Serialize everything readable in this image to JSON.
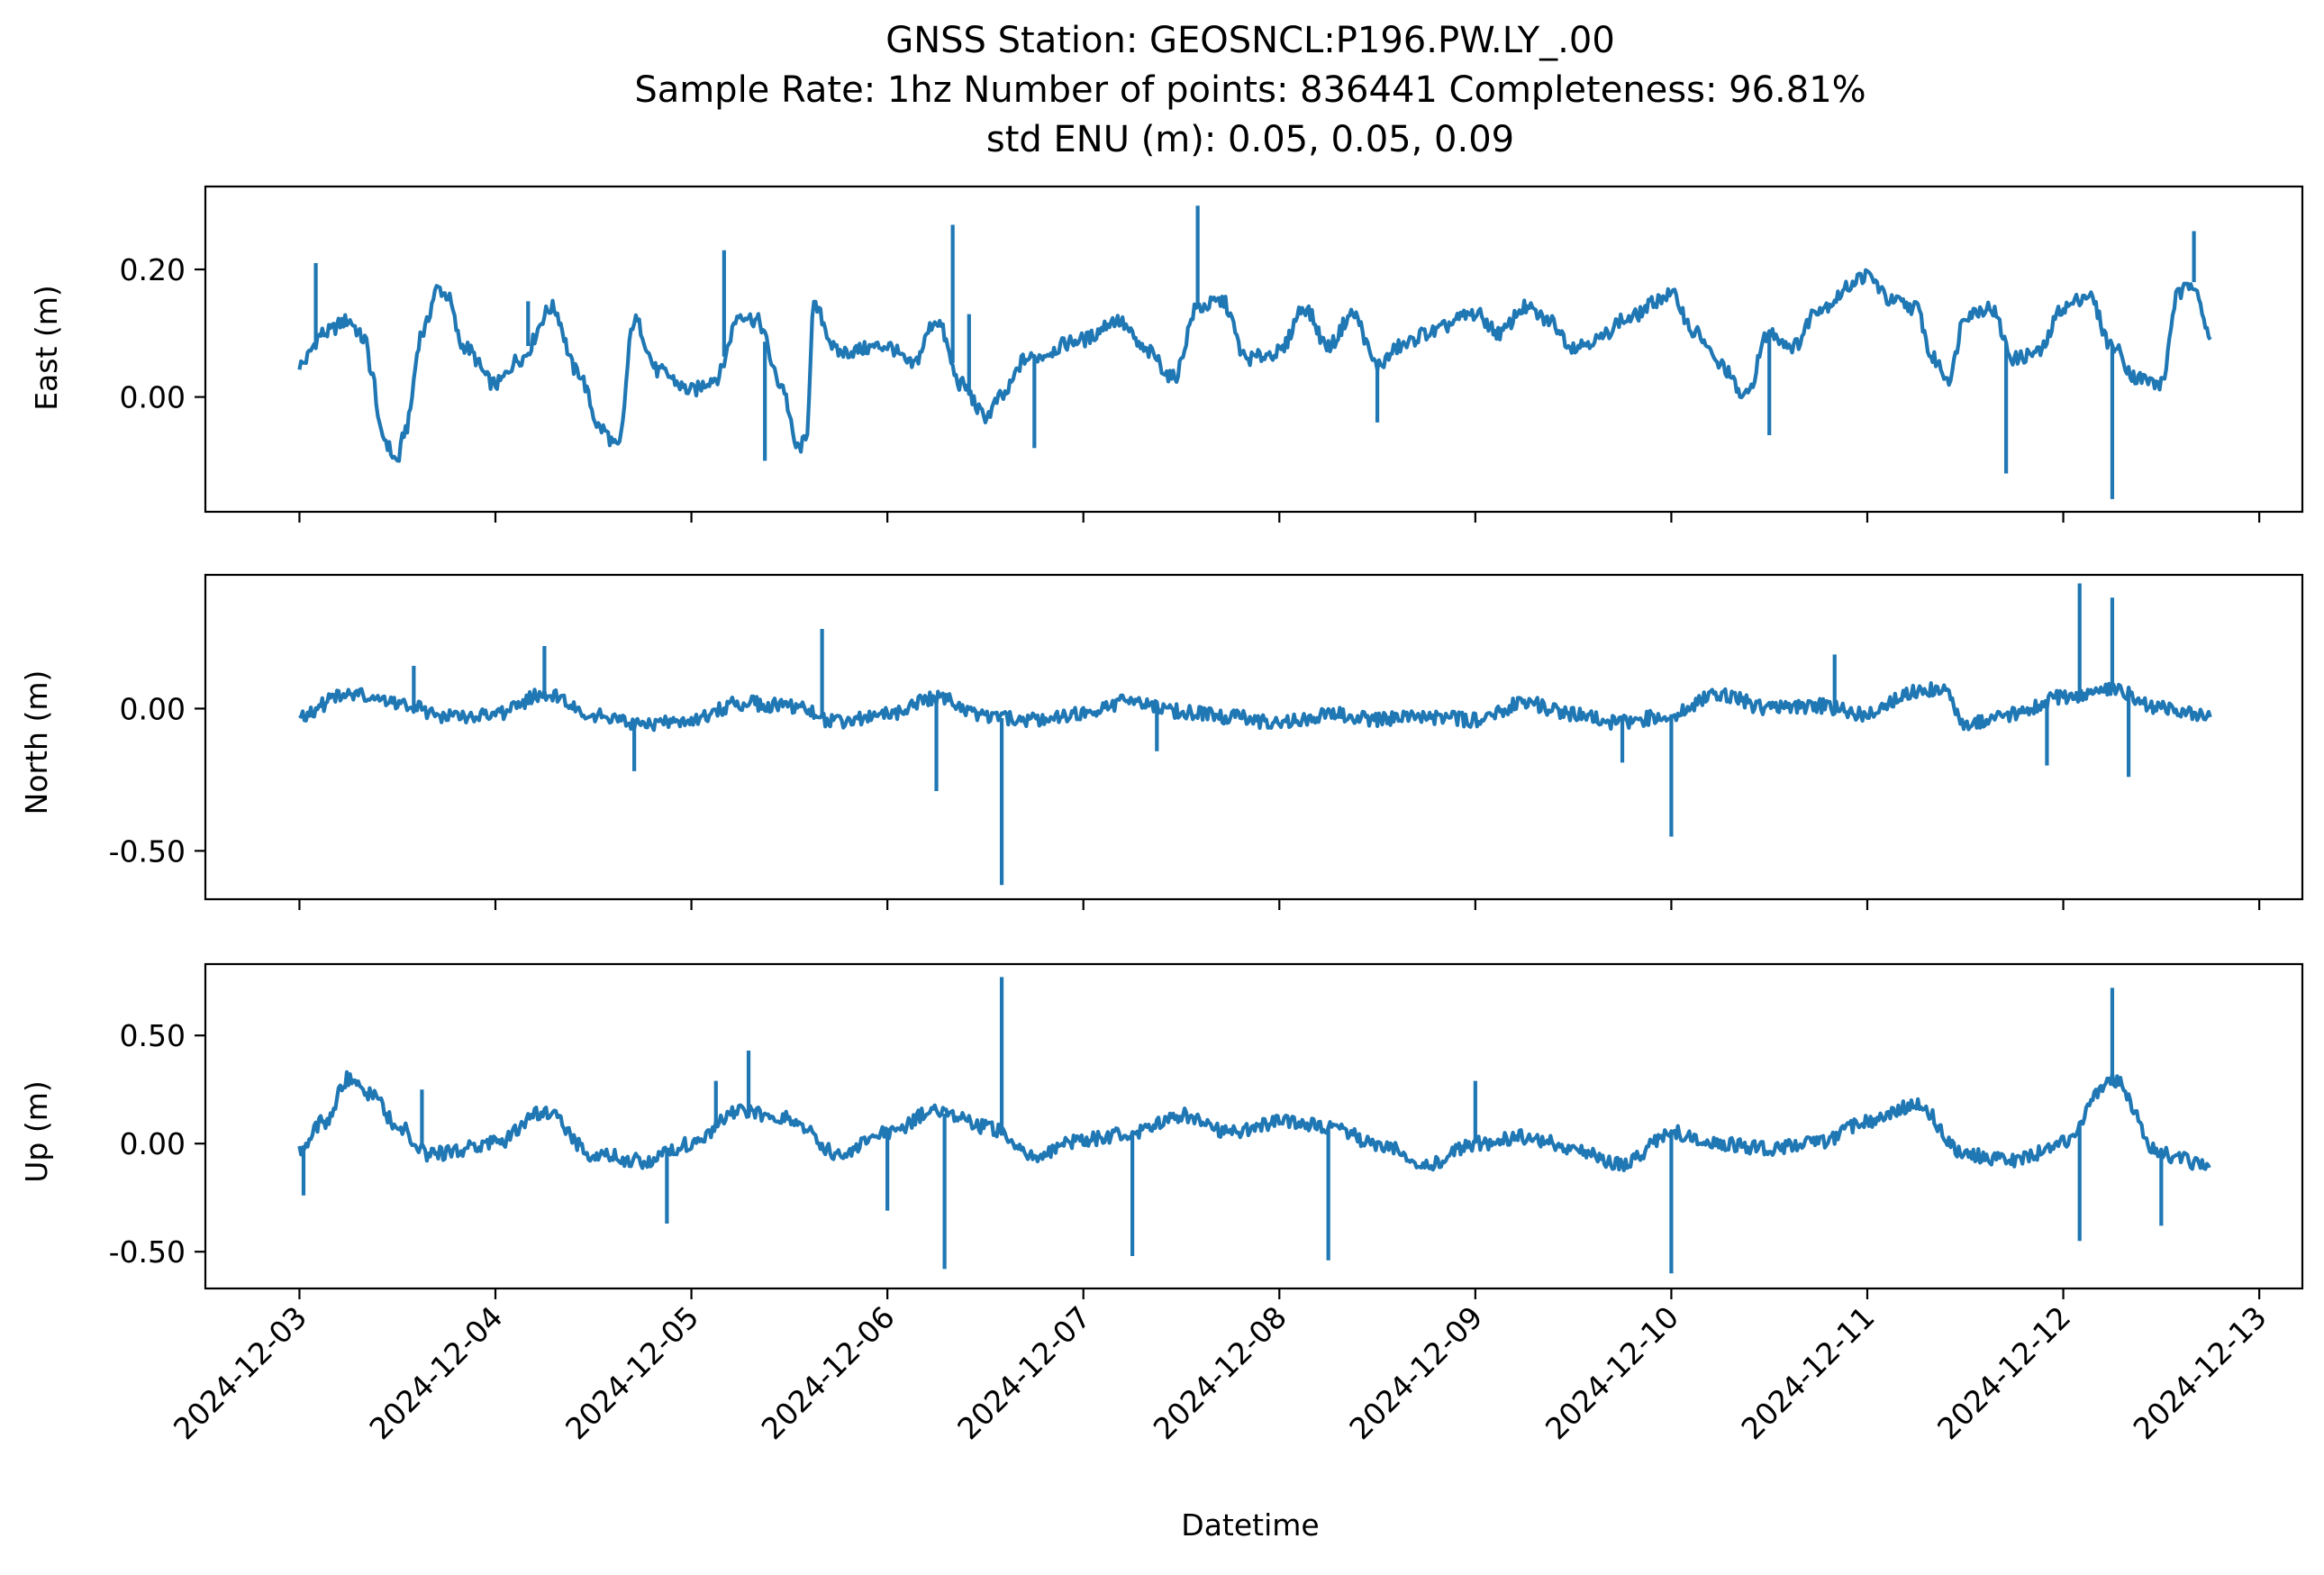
{
  "figure": {
    "title_lines": [
      "GNSS Station: GEOSNCL:P196.PW.LY_.00",
      "Sample Rate: 1hz   Number of points: 836441    Completeness:  96.81%",
      "std ENU (m):  0.05, 0.05, 0.09"
    ],
    "xlabel": "Datetime",
    "line_color": "#1f77b4"
  },
  "chart_data": [
    {
      "type": "line",
      "panel": "east",
      "ylabel": "East (m)",
      "ylim": [
        -0.18,
        0.33
      ],
      "yticks": [
        0.0,
        0.2
      ],
      "ytick_labels": [
        "0.00",
        "0.20"
      ],
      "x_range": [
        "2024-12-03",
        "2024-12-12T18:00"
      ],
      "xlim": [
        -0.48,
        10.22
      ],
      "xticks": [
        "2024-12-03",
        "2024-12-04",
        "2024-12-05",
        "2024-12-06",
        "2024-12-07",
        "2024-12-08",
        "2024-12-09",
        "2024-12-10",
        "2024-12-11",
        "2024-12-12",
        "2024-12-13"
      ],
      "xtick_labels": [],
      "series": [
        {
          "color": "#1f77b4",
          "points": [
            [
              "2024-12-03T00:00",
              0.05
            ],
            [
              "2024-12-03T03:00",
              0.1
            ],
            [
              "2024-12-03T06:00",
              0.12
            ],
            [
              "2024-12-03T08:00",
              0.09
            ],
            [
              "2024-12-03T09:00",
              0.03
            ],
            [
              "2024-12-03T10:00",
              -0.06
            ],
            [
              "2024-12-03T12:00",
              -0.1
            ],
            [
              "2024-12-03T13:00",
              -0.05
            ],
            [
              "2024-12-03T15:00",
              0.1
            ],
            [
              "2024-12-03T17:00",
              0.17
            ],
            [
              "2024-12-03T18:00",
              0.16
            ],
            [
              "2024-12-03T20:00",
              0.08
            ],
            [
              "2024-12-04T00:00",
              0.02
            ],
            [
              "2024-12-04T03:00",
              0.06
            ],
            [
              "2024-12-04T07:00",
              0.14
            ],
            [
              "2024-12-04T10:00",
              0.04
            ],
            [
              "2024-12-04T13:00",
              -0.05
            ],
            [
              "2024-12-04T15:00",
              -0.08
            ],
            [
              "2024-12-04T17:00",
              0.12
            ],
            [
              "2024-12-04T20:00",
              0.04
            ],
            [
              "2024-12-05T00:00",
              0.01
            ],
            [
              "2024-12-05T03:00",
              0.03
            ],
            [
              "2024-12-05T06:00",
              0.13
            ],
            [
              "2024-12-05T08:00",
              0.12
            ],
            [
              "2024-12-05T11:00",
              0.02
            ],
            [
              "2024-12-05T13:00",
              -0.08
            ],
            [
              "2024-12-05T14:00",
              -0.07
            ],
            [
              "2024-12-05T15:00",
              0.14
            ],
            [
              "2024-12-05T18:00",
              0.07
            ],
            [
              "2024-12-06T00:00",
              0.08
            ],
            [
              "2024-12-06T03:00",
              0.05
            ],
            [
              "2024-12-06T06:00",
              0.12
            ],
            [
              "2024-12-06T09:00",
              0.02
            ],
            [
              "2024-12-06T12:00",
              -0.03
            ],
            [
              "2024-12-06T14:00",
              0.0
            ],
            [
              "2024-12-06T17:00",
              0.06
            ],
            [
              "2024-12-07T00:00",
              0.09
            ],
            [
              "2024-12-07T04:00",
              0.12
            ],
            [
              "2024-12-07T08:00",
              0.07
            ],
            [
              "2024-12-07T11:00",
              0.03
            ],
            [
              "2024-12-07T14:00",
              0.14
            ],
            [
              "2024-12-07T17:00",
              0.15
            ],
            [
              "2024-12-07T20:00",
              0.06
            ],
            [
              "2024-12-08T00:00",
              0.07
            ],
            [
              "2024-12-08T03:00",
              0.14
            ],
            [
              "2024-12-08T06:00",
              0.08
            ],
            [
              "2024-12-08T09:00",
              0.13
            ],
            [
              "2024-12-08T12:00",
              0.05
            ],
            [
              "2024-12-08T15:00",
              0.08
            ],
            [
              "2024-12-08T18:00",
              0.1
            ],
            [
              "2024-12-09T00:00",
              0.13
            ],
            [
              "2024-12-09T03:00",
              0.1
            ],
            [
              "2024-12-09T06:00",
              0.14
            ],
            [
              "2024-12-09T09:00",
              0.12
            ],
            [
              "2024-12-09T12:00",
              0.08
            ],
            [
              "2024-12-09T15:00",
              0.09
            ],
            [
              "2024-12-09T18:00",
              0.12
            ],
            [
              "2024-12-10T00:00",
              0.16
            ],
            [
              "2024-12-10T03:00",
              0.1
            ],
            [
              "2024-12-10T06:00",
              0.05
            ],
            [
              "2024-12-10T09:00",
              0.0
            ],
            [
              "2024-12-10T12:00",
              0.1
            ],
            [
              "2024-12-10T15:00",
              0.08
            ],
            [
              "2024-12-10T18:00",
              0.14
            ],
            [
              "2024-12-11T00:00",
              0.19
            ],
            [
              "2024-12-11T03:00",
              0.15
            ],
            [
              "2024-12-11T06:00",
              0.14
            ],
            [
              "2024-12-11T08:00",
              0.06
            ],
            [
              "2024-12-11T10:00",
              0.03
            ],
            [
              "2024-12-11T12:00",
              0.13
            ],
            [
              "2024-12-11T15:00",
              0.14
            ],
            [
              "2024-12-11T18:00",
              0.06
            ],
            [
              "2024-12-11T21:00",
              0.07
            ],
            [
              "2024-12-12T00:00",
              0.14
            ],
            [
              "2024-12-12T03:00",
              0.16
            ],
            [
              "2024-12-12T06:00",
              0.08
            ],
            [
              "2024-12-12T09:00",
              0.03
            ],
            [
              "2024-12-12T12:00",
              0.02
            ],
            [
              "2024-12-12T14:00",
              0.16
            ],
            [
              "2024-12-12T16:00",
              0.18
            ],
            [
              "2024-12-12T18:00",
              0.09
            ]
          ],
          "spikes": [
            [
              "2024-12-03T02:00",
              0.21
            ],
            [
              "2024-12-04T04:00",
              0.15
            ],
            [
              "2024-12-05T04:00",
              0.23
            ],
            [
              "2024-12-05T09:00",
              -0.1
            ],
            [
              "2024-12-06T08:00",
              0.27
            ],
            [
              "2024-12-06T10:00",
              0.13
            ],
            [
              "2024-12-06T18:00",
              -0.08
            ],
            [
              "2024-12-07T14:00",
              0.3
            ],
            [
              "2024-12-08T12:00",
              -0.04
            ],
            [
              "2024-12-10T12:00",
              -0.06
            ],
            [
              "2024-12-11T17:00",
              -0.12
            ],
            [
              "2024-12-12T06:00",
              -0.16
            ],
            [
              "2024-12-12T16:00",
              0.26
            ]
          ]
        }
      ]
    },
    {
      "type": "line",
      "panel": "north",
      "ylabel": "North (m)",
      "ylim": [
        -0.67,
        0.47
      ],
      "yticks": [
        -0.5,
        0.0
      ],
      "ytick_labels": [
        "-0.50",
        "0.00"
      ],
      "x_range": [
        "2024-12-03",
        "2024-12-12T18:00"
      ],
      "xlim": [
        -0.48,
        10.22
      ],
      "xticks": [
        "2024-12-03",
        "2024-12-04",
        "2024-12-05",
        "2024-12-06",
        "2024-12-07",
        "2024-12-08",
        "2024-12-09",
        "2024-12-10",
        "2024-12-11",
        "2024-12-12",
        "2024-12-13"
      ],
      "xtick_labels": [],
      "series": [
        {
          "color": "#1f77b4",
          "points": [
            [
              "2024-12-03T00:00",
              -0.02
            ],
            [
              "2024-12-03T06:00",
              0.05
            ],
            [
              "2024-12-03T12:00",
              0.02
            ],
            [
              "2024-12-03T18:00",
              -0.03
            ],
            [
              "2024-12-04T00:00",
              -0.02
            ],
            [
              "2024-12-04T06:00",
              0.05
            ],
            [
              "2024-12-04T12:00",
              -0.02
            ],
            [
              "2024-12-04T18:00",
              -0.06
            ],
            [
              "2024-12-05T00:00",
              -0.04
            ],
            [
              "2024-12-05T06:00",
              0.02
            ],
            [
              "2024-12-05T12:00",
              0.01
            ],
            [
              "2024-12-05T18:00",
              -0.05
            ],
            [
              "2024-12-06T00:00",
              -0.02
            ],
            [
              "2024-12-06T06:00",
              0.04
            ],
            [
              "2024-12-06T12:00",
              -0.03
            ],
            [
              "2024-12-06T18:00",
              -0.04
            ],
            [
              "2024-12-07T00:00",
              -0.02
            ],
            [
              "2024-12-07T06:00",
              0.03
            ],
            [
              "2024-12-07T12:00",
              -0.01
            ],
            [
              "2024-12-07T18:00",
              -0.03
            ],
            [
              "2024-12-08T00:00",
              -0.05
            ],
            [
              "2024-12-08T06:00",
              -0.02
            ],
            [
              "2024-12-08T12:00",
              -0.04
            ],
            [
              "2024-12-08T18:00",
              -0.03
            ],
            [
              "2024-12-09T00:00",
              -0.04
            ],
            [
              "2024-12-09T06:00",
              0.02
            ],
            [
              "2024-12-09T12:00",
              -0.02
            ],
            [
              "2024-12-09T18:00",
              -0.05
            ],
            [
              "2024-12-10T00:00",
              -0.02
            ],
            [
              "2024-12-10T06:00",
              0.05
            ],
            [
              "2024-12-10T12:00",
              0.0
            ],
            [
              "2024-12-10T18:00",
              0.01
            ],
            [
              "2024-12-11T00:00",
              -0.02
            ],
            [
              "2024-12-11T06:00",
              0.06
            ],
            [
              "2024-12-11T09:00",
              0.07
            ],
            [
              "2024-12-11T12:00",
              -0.05
            ],
            [
              "2024-12-11T18:00",
              -0.02
            ],
            [
              "2024-12-12T00:00",
              0.04
            ],
            [
              "2024-12-12T06:00",
              0.07
            ],
            [
              "2024-12-12T12:00",
              0.0
            ],
            [
              "2024-12-12T18:00",
              -0.03
            ]
          ],
          "spikes": [
            [
              "2024-12-03T14:00",
              0.15
            ],
            [
              "2024-12-04T06:00",
              0.22
            ],
            [
              "2024-12-04T17:00",
              -0.22
            ],
            [
              "2024-12-05T16:00",
              0.28
            ],
            [
              "2024-12-06T06:00",
              -0.29
            ],
            [
              "2024-12-06T14:00",
              -0.62
            ],
            [
              "2024-12-07T09:00",
              -0.15
            ],
            [
              "2024-12-09T18:00",
              -0.19
            ],
            [
              "2024-12-10T00:00",
              -0.45
            ],
            [
              "2024-12-10T20:00",
              0.19
            ],
            [
              "2024-12-11T22:00",
              -0.2
            ],
            [
              "2024-12-12T02:00",
              0.44
            ],
            [
              "2024-12-12T06:00",
              0.39
            ],
            [
              "2024-12-12T08:00",
              -0.24
            ]
          ]
        }
      ]
    },
    {
      "type": "line",
      "panel": "up",
      "ylabel": "Up (m)",
      "ylim": [
        -0.67,
        0.83
      ],
      "yticks": [
        -0.5,
        0.0,
        0.5
      ],
      "ytick_labels": [
        "-0.50",
        "0.00",
        "0.50"
      ],
      "x_range": [
        "2024-12-03",
        "2024-12-12T18:00"
      ],
      "xlim": [
        -0.48,
        10.22
      ],
      "xticks": [
        "2024-12-03",
        "2024-12-04",
        "2024-12-05",
        "2024-12-06",
        "2024-12-07",
        "2024-12-08",
        "2024-12-09",
        "2024-12-10",
        "2024-12-11",
        "2024-12-12",
        "2024-12-13"
      ],
      "xtick_labels": [
        "2024-12-03",
        "2024-12-04",
        "2024-12-05",
        "2024-12-06",
        "2024-12-07",
        "2024-12-08",
        "2024-12-09",
        "2024-12-10",
        "2024-12-11",
        "2024-12-12",
        "2024-12-13"
      ],
      "series": [
        {
          "color": "#1f77b4",
          "points": [
            [
              "2024-12-03T00:00",
              -0.03
            ],
            [
              "2024-12-03T03:00",
              0.1
            ],
            [
              "2024-12-03T06:00",
              0.3
            ],
            [
              "2024-12-03T09:00",
              0.22
            ],
            [
              "2024-12-03T12:00",
              0.08
            ],
            [
              "2024-12-03T16:00",
              -0.05
            ],
            [
              "2024-12-04T00:00",
              0.0
            ],
            [
              "2024-12-04T06:00",
              0.15
            ],
            [
              "2024-12-04T12:00",
              -0.05
            ],
            [
              "2024-12-04T18:00",
              -0.08
            ],
            [
              "2024-12-05T00:00",
              0.0
            ],
            [
              "2024-12-05T06:00",
              0.15
            ],
            [
              "2024-12-05T12:00",
              0.12
            ],
            [
              "2024-12-05T18:00",
              -0.05
            ],
            [
              "2024-12-06T00:00",
              0.05
            ],
            [
              "2024-12-06T06:00",
              0.15
            ],
            [
              "2024-12-06T12:00",
              0.08
            ],
            [
              "2024-12-06T18:00",
              -0.05
            ],
            [
              "2024-12-07T00:00",
              0.02
            ],
            [
              "2024-12-07T06:00",
              0.05
            ],
            [
              "2024-12-07T12:00",
              0.13
            ],
            [
              "2024-12-07T18:00",
              0.05
            ],
            [
              "2024-12-08T00:00",
              0.1
            ],
            [
              "2024-12-08T06:00",
              0.08
            ],
            [
              "2024-12-08T12:00",
              0.0
            ],
            [
              "2024-12-08T18:00",
              -0.1
            ],
            [
              "2024-12-09T00:00",
              0.0
            ],
            [
              "2024-12-09T06:00",
              0.03
            ],
            [
              "2024-12-09T12:00",
              -0.02
            ],
            [
              "2024-12-09T18:00",
              -0.1
            ],
            [
              "2024-12-10T00:00",
              0.05
            ],
            [
              "2024-12-10T06:00",
              0.0
            ],
            [
              "2024-12-10T12:00",
              -0.02
            ],
            [
              "2024-12-10T18:00",
              0.0
            ],
            [
              "2024-12-11T00:00",
              0.1
            ],
            [
              "2024-12-11T06:00",
              0.18
            ],
            [
              "2024-12-11T12:00",
              -0.05
            ],
            [
              "2024-12-11T18:00",
              -0.08
            ],
            [
              "2024-12-12T00:00",
              0.0
            ],
            [
              "2024-12-12T06:00",
              0.3
            ],
            [
              "2024-12-12T12:00",
              -0.05
            ],
            [
              "2024-12-12T18:00",
              -0.1
            ]
          ],
          "spikes": [
            [
              "2024-12-03T00:30",
              -0.24
            ],
            [
              "2024-12-03T15:00",
              0.25
            ],
            [
              "2024-12-04T21:00",
              -0.37
            ],
            [
              "2024-12-05T03:00",
              0.29
            ],
            [
              "2024-12-05T07:00",
              0.43
            ],
            [
              "2024-12-06T00:00",
              -0.31
            ],
            [
              "2024-12-06T07:00",
              -0.58
            ],
            [
              "2024-12-06T14:00",
              0.77
            ],
            [
              "2024-12-07T06:00",
              -0.52
            ],
            [
              "2024-12-08T06:00",
              -0.54
            ],
            [
              "2024-12-09T00:00",
              0.29
            ],
            [
              "2024-12-10T00:00",
              -0.6
            ],
            [
              "2024-12-12T02:00",
              -0.45
            ],
            [
              "2024-12-12T06:00",
              0.72
            ],
            [
              "2024-12-12T12:00",
              -0.38
            ]
          ]
        }
      ]
    }
  ]
}
